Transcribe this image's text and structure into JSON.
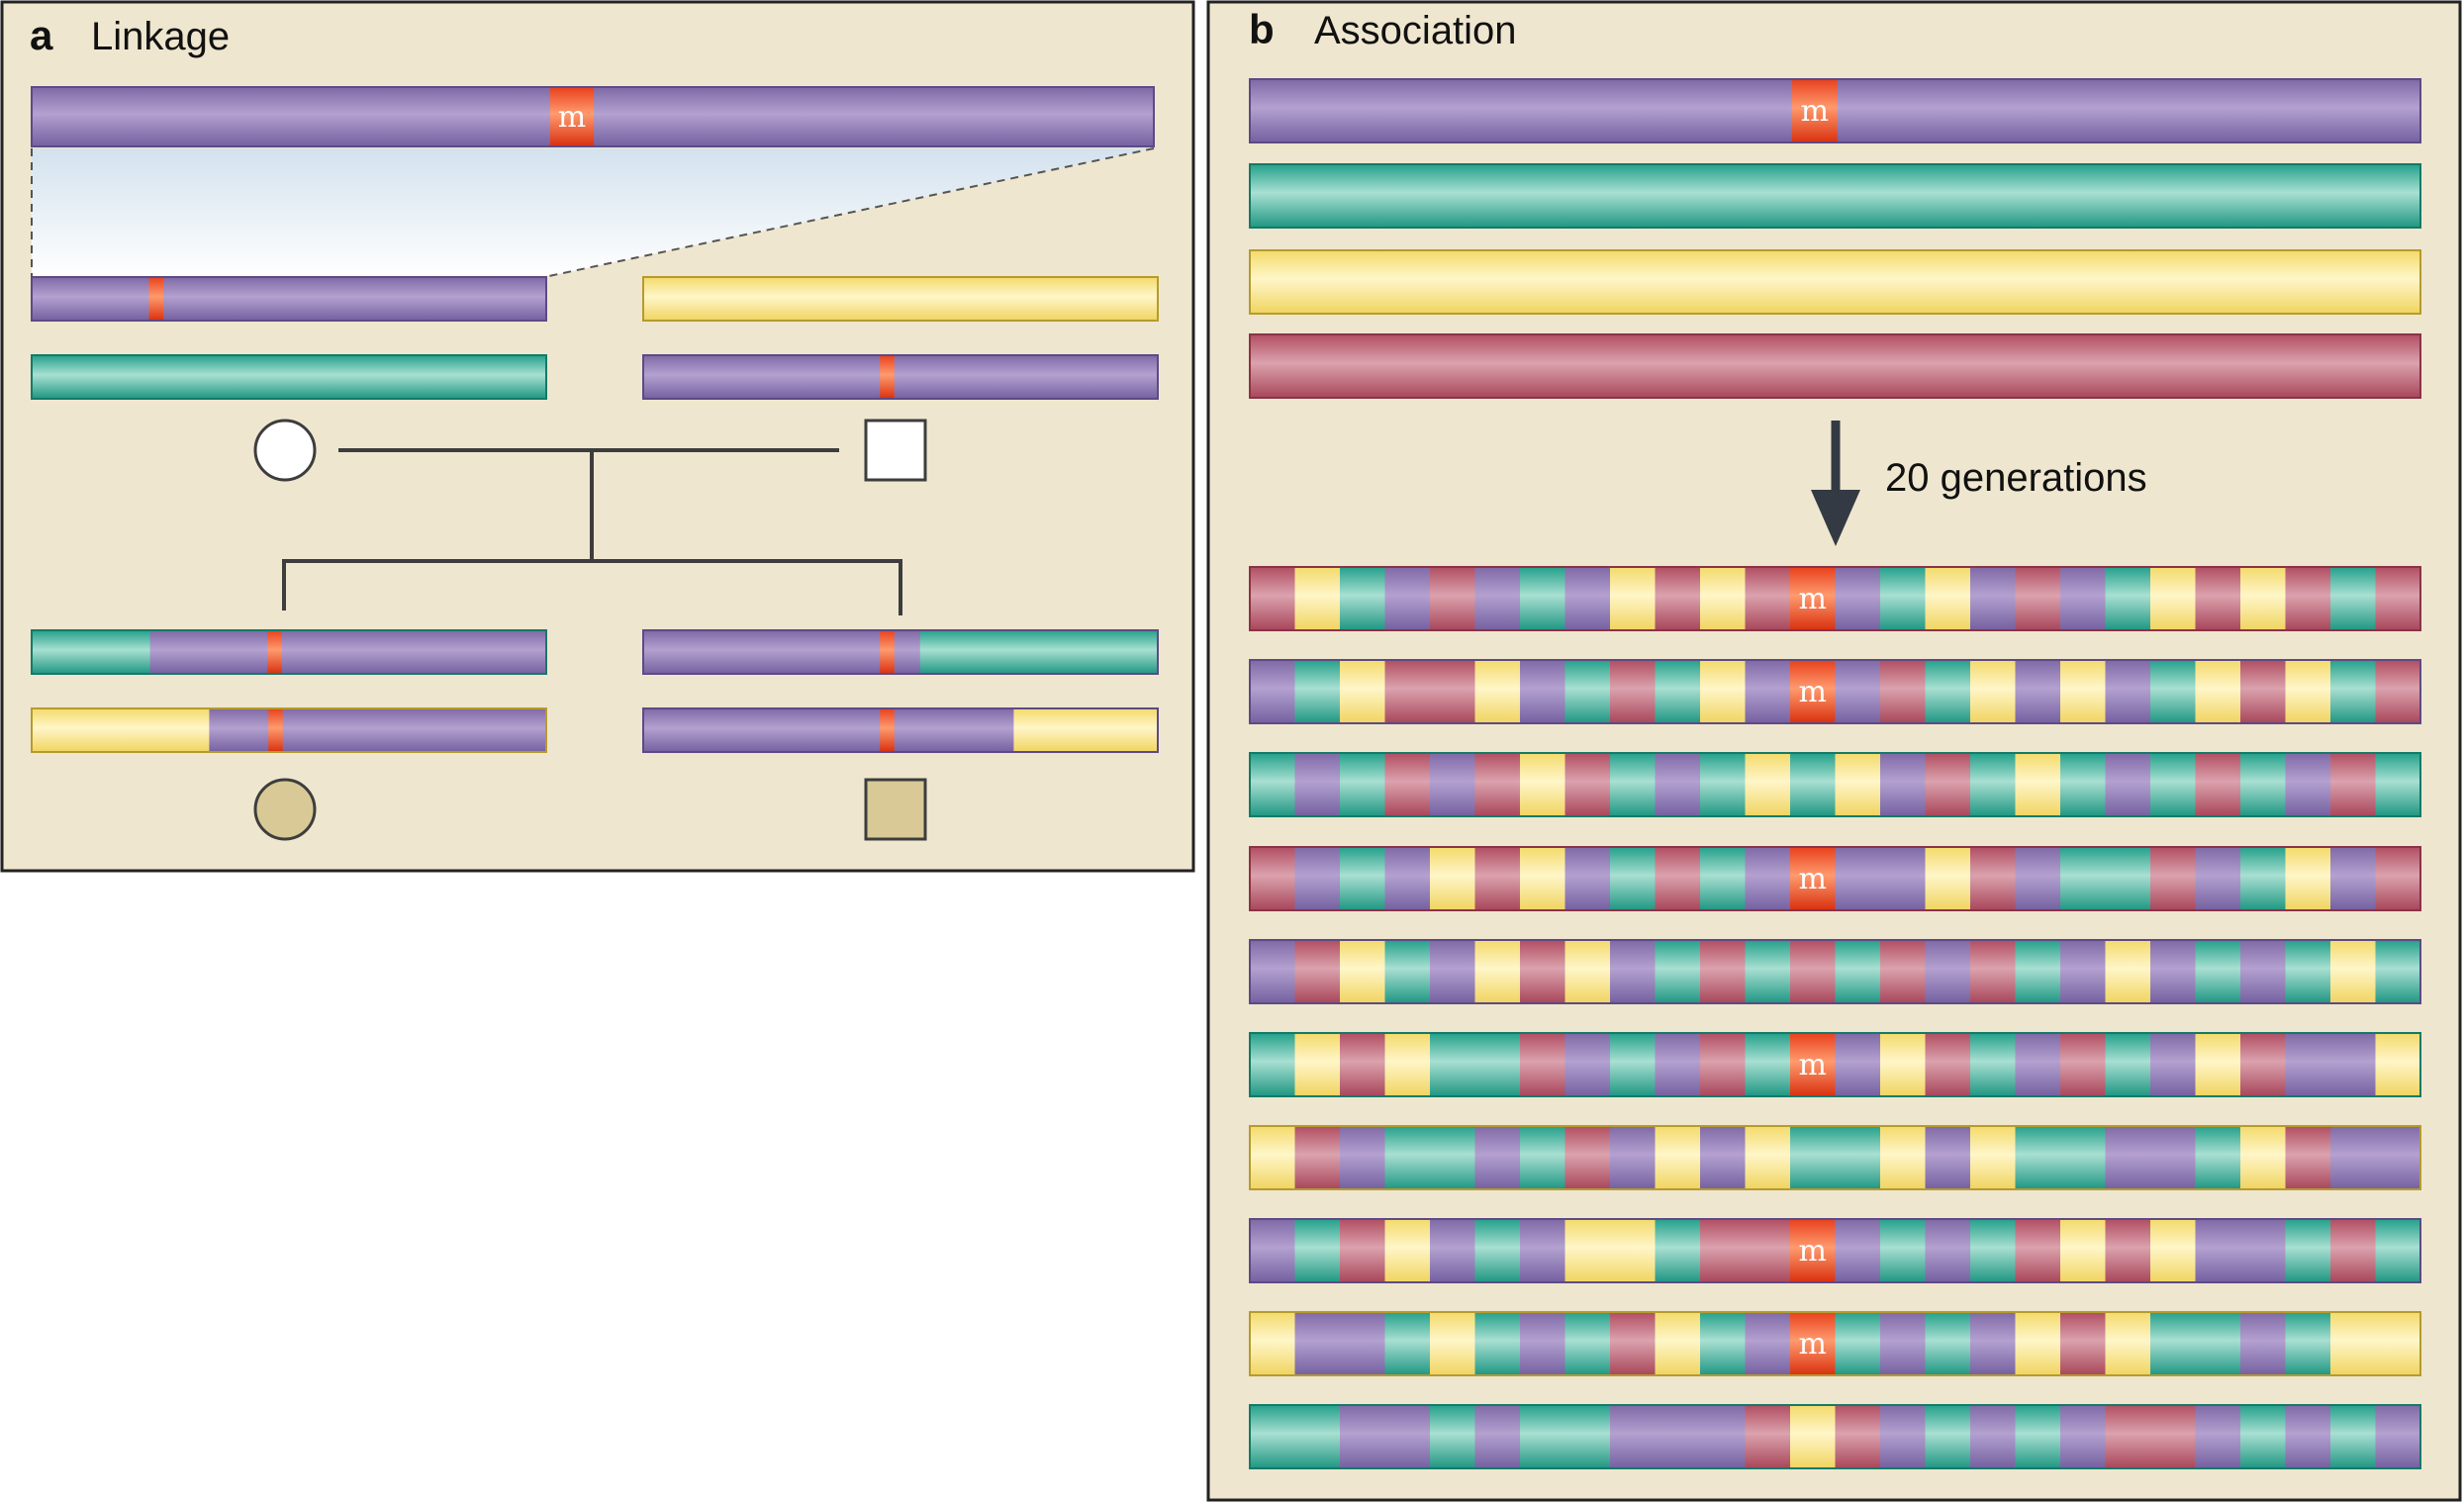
{
  "panel_a": {
    "letter": "a",
    "title": "Linkage"
  },
  "panel_b": {
    "letter": "b",
    "title": "Association",
    "arrow_label": "20 generations",
    "original_chromosomes": [
      "purple",
      "teal",
      "yellow",
      "red"
    ],
    "recombinant_rows": [
      {
        "marked": true,
        "segments": [
          "red",
          "yellow",
          "teal",
          "purple",
          "red",
          "purple",
          "teal",
          "purple",
          "yellow",
          "red",
          "yellow",
          "red",
          "M",
          "purple",
          "teal",
          "yellow",
          "purple",
          "red",
          "purple",
          "teal",
          "yellow",
          "red",
          "yellow",
          "red",
          "teal",
          "red"
        ]
      },
      {
        "marked": true,
        "segments": [
          "purple",
          "teal",
          "yellow",
          "red",
          "red",
          "yellow",
          "purple",
          "teal",
          "red",
          "teal",
          "yellow",
          "purple",
          "M",
          "purple",
          "red",
          "teal",
          "yellow",
          "purple",
          "yellow",
          "purple",
          "teal",
          "yellow",
          "red",
          "yellow",
          "teal",
          "red"
        ]
      },
      {
        "marked": false,
        "segments": [
          "teal",
          "purple",
          "teal",
          "red",
          "purple",
          "red",
          "yellow",
          "red",
          "teal",
          "purple",
          "teal",
          "yellow",
          "teal",
          "yellow",
          "purple",
          "red",
          "teal",
          "yellow",
          "teal",
          "purple",
          "teal",
          "red",
          "teal",
          "purple",
          "red",
          "teal"
        ]
      },
      {
        "marked": true,
        "segments": [
          "red",
          "purple",
          "teal",
          "purple",
          "yellow",
          "red",
          "yellow",
          "purple",
          "teal",
          "red",
          "teal",
          "purple",
          "M",
          "purple",
          "purple",
          "yellow",
          "red",
          "purple",
          "teal",
          "teal",
          "red",
          "purple",
          "teal",
          "yellow",
          "purple",
          "red"
        ]
      },
      {
        "marked": false,
        "segments": [
          "purple",
          "red",
          "yellow",
          "teal",
          "purple",
          "yellow",
          "red",
          "yellow",
          "purple",
          "teal",
          "red",
          "teal",
          "red",
          "teal",
          "red",
          "purple",
          "red",
          "teal",
          "purple",
          "yellow",
          "purple",
          "teal",
          "purple",
          "teal",
          "yellow",
          "teal"
        ]
      },
      {
        "marked": true,
        "segments": [
          "teal",
          "yellow",
          "red",
          "yellow",
          "teal",
          "teal",
          "red",
          "purple",
          "teal",
          "purple",
          "red",
          "teal",
          "M",
          "purple",
          "yellow",
          "red",
          "teal",
          "purple",
          "red",
          "teal",
          "purple",
          "yellow",
          "red",
          "purple",
          "purple",
          "yellow"
        ]
      },
      {
        "marked": false,
        "segments": [
          "yellow",
          "red",
          "purple",
          "teal",
          "teal",
          "purple",
          "teal",
          "red",
          "purple",
          "yellow",
          "purple",
          "yellow",
          "teal",
          "teal",
          "yellow",
          "purple",
          "yellow",
          "teal",
          "teal",
          "purple",
          "purple",
          "teal",
          "yellow",
          "red",
          "purple",
          "purple"
        ]
      },
      {
        "marked": true,
        "segments": [
          "purple",
          "teal",
          "red",
          "yellow",
          "purple",
          "teal",
          "purple",
          "yellow",
          "yellow",
          "teal",
          "red",
          "red",
          "M",
          "purple",
          "teal",
          "purple",
          "teal",
          "red",
          "yellow",
          "red",
          "yellow",
          "purple",
          "purple",
          "teal",
          "red",
          "teal"
        ]
      },
      {
        "marked": true,
        "segments": [
          "yellow",
          "purple",
          "purple",
          "teal",
          "yellow",
          "teal",
          "purple",
          "teal",
          "red",
          "yellow",
          "teal",
          "purple",
          "M",
          "teal",
          "purple",
          "teal",
          "purple",
          "yellow",
          "red",
          "yellow",
          "teal",
          "teal",
          "purple",
          "teal",
          "yellow",
          "yellow"
        ]
      },
      {
        "marked": false,
        "segments": [
          "teal",
          "teal",
          "purple",
          "purple",
          "teal",
          "purple",
          "teal",
          "teal",
          "purple",
          "purple",
          "purple",
          "red",
          "yellow",
          "red",
          "purple",
          "teal",
          "purple",
          "teal",
          "purple",
          "red",
          "red",
          "purple",
          "teal",
          "purple",
          "teal",
          "purple"
        ]
      }
    ]
  },
  "mutation_label": "m",
  "colors": {
    "background": "#efe6cf",
    "border": "#222222",
    "purple": "#a892c4",
    "teal": "#66c4b1",
    "yellow": "#fbe99a",
    "red": "#c57483",
    "mutation": "#f05a28",
    "affected_fill": "#d8c996",
    "line": "#3d3d3d"
  }
}
